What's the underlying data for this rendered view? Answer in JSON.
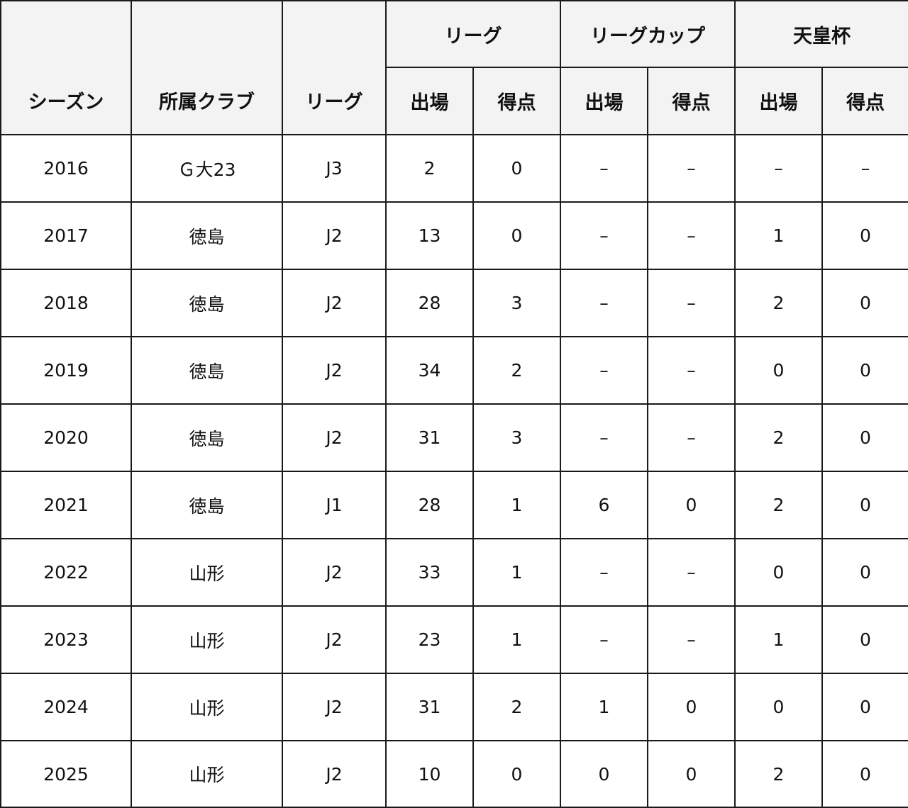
{
  "headers": {
    "season": "シーズン",
    "club": "所属クラブ",
    "league": "リーグ",
    "group_league": "リーグ",
    "group_cup": "リーグカップ",
    "group_emperor": "天皇杯",
    "apps": "出場",
    "goals": "得点"
  },
  "rows": [
    {
      "season": "2016",
      "club": "Ｇ大23",
      "league": "J3",
      "league_apps": "2",
      "league_goals": "0",
      "cup_apps": "–",
      "cup_goals": "–",
      "emp_apps": "–",
      "emp_goals": "–"
    },
    {
      "season": "2017",
      "club": "徳島",
      "league": "J2",
      "league_apps": "13",
      "league_goals": "0",
      "cup_apps": "–",
      "cup_goals": "–",
      "emp_apps": "1",
      "emp_goals": "0"
    },
    {
      "season": "2018",
      "club": "徳島",
      "league": "J2",
      "league_apps": "28",
      "league_goals": "3",
      "cup_apps": "–",
      "cup_goals": "–",
      "emp_apps": "2",
      "emp_goals": "0"
    },
    {
      "season": "2019",
      "club": "徳島",
      "league": "J2",
      "league_apps": "34",
      "league_goals": "2",
      "cup_apps": "–",
      "cup_goals": "–",
      "emp_apps": "0",
      "emp_goals": "0"
    },
    {
      "season": "2020",
      "club": "徳島",
      "league": "J2",
      "league_apps": "31",
      "league_goals": "3",
      "cup_apps": "–",
      "cup_goals": "–",
      "emp_apps": "2",
      "emp_goals": "0"
    },
    {
      "season": "2021",
      "club": "徳島",
      "league": "J1",
      "league_apps": "28",
      "league_goals": "1",
      "cup_apps": "6",
      "cup_goals": "0",
      "emp_apps": "2",
      "emp_goals": "0"
    },
    {
      "season": "2022",
      "club": "山形",
      "league": "J2",
      "league_apps": "33",
      "league_goals": "1",
      "cup_apps": "–",
      "cup_goals": "–",
      "emp_apps": "0",
      "emp_goals": "0"
    },
    {
      "season": "2023",
      "club": "山形",
      "league": "J2",
      "league_apps": "23",
      "league_goals": "1",
      "cup_apps": "–",
      "cup_goals": "–",
      "emp_apps": "1",
      "emp_goals": "0"
    },
    {
      "season": "2024",
      "club": "山形",
      "league": "J2",
      "league_apps": "31",
      "league_goals": "2",
      "cup_apps": "1",
      "cup_goals": "0",
      "emp_apps": "0",
      "emp_goals": "0"
    },
    {
      "season": "2025",
      "club": "山形",
      "league": "J2",
      "league_apps": "10",
      "league_goals": "0",
      "cup_apps": "0",
      "cup_goals": "0",
      "emp_apps": "2",
      "emp_goals": "0"
    }
  ]
}
